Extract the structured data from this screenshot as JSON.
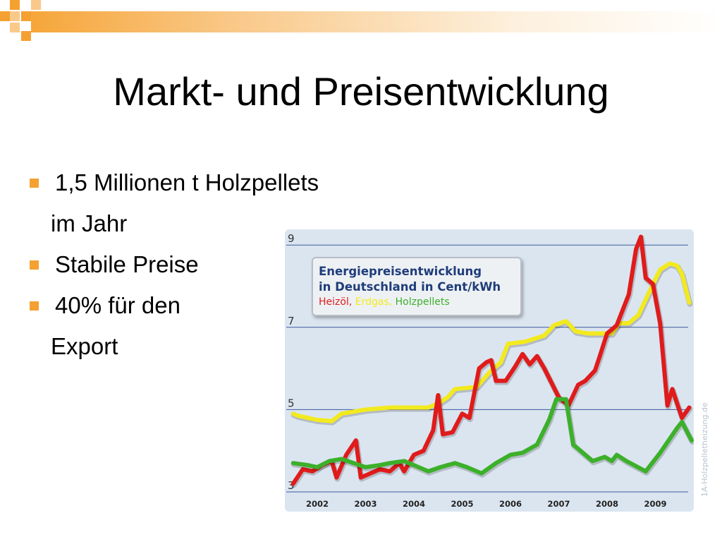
{
  "slide": {
    "title": "Markt- und Preisentwicklung",
    "bullets": [
      {
        "line1": "1,5 Millionen t Holzpellets",
        "line2": "im Jahr"
      },
      {
        "line1": "Stabile Preise"
      },
      {
        "line1": "40% für den",
        "line2": "Export"
      }
    ]
  },
  "colors": {
    "accent": "#f4a132",
    "heizoel": "#e01b1b",
    "erdgas": "#f2ea1e",
    "holzpellets": "#3cb02a"
  },
  "chart_data": {
    "type": "line",
    "title": "Energiepreisentwicklung in Deutschland in Cent/kWh",
    "title_line1": "Energiepreisentwicklung",
    "title_line2": "in Deutschland in Cent/kWh",
    "xlabel": "",
    "ylabel": "",
    "x_ticks": [
      "2002",
      "2003",
      "2004",
      "2005",
      "2006",
      "2007",
      "2008",
      "2009"
    ],
    "xlim": [
      2001.5,
      2009.8
    ],
    "y_ticks": [
      "9",
      "7",
      "5",
      "3"
    ],
    "ylim": [
      3,
      9.3
    ],
    "grid": true,
    "legend_position": "top-left",
    "watermark": "1A-Holzpelletheizung.de",
    "series": [
      {
        "name": "Heizöl",
        "legend_label": "Heizöl,",
        "color_key": "heizoel",
        "points": [
          [
            2001.5,
            3.2
          ],
          [
            2001.7,
            3.55
          ],
          [
            2001.9,
            3.5
          ],
          [
            2002.1,
            3.65
          ],
          [
            2002.3,
            3.75
          ],
          [
            2002.4,
            3.35
          ],
          [
            2002.6,
            3.9
          ],
          [
            2002.8,
            4.25
          ],
          [
            2002.9,
            3.35
          ],
          [
            2003.1,
            3.45
          ],
          [
            2003.3,
            3.55
          ],
          [
            2003.5,
            3.5
          ],
          [
            2003.7,
            3.7
          ],
          [
            2003.8,
            3.5
          ],
          [
            2004.0,
            3.9
          ],
          [
            2004.2,
            4.0
          ],
          [
            2004.4,
            4.5
          ],
          [
            2004.5,
            5.35
          ],
          [
            2004.6,
            4.4
          ],
          [
            2004.8,
            4.45
          ],
          [
            2005.0,
            4.9
          ],
          [
            2005.15,
            4.8
          ],
          [
            2005.35,
            6.0
          ],
          [
            2005.5,
            6.15
          ],
          [
            2005.6,
            6.2
          ],
          [
            2005.7,
            5.7
          ],
          [
            2005.9,
            5.7
          ],
          [
            2006.1,
            6.05
          ],
          [
            2006.25,
            6.35
          ],
          [
            2006.4,
            6.1
          ],
          [
            2006.55,
            6.3
          ],
          [
            2006.7,
            6.0
          ],
          [
            2007.0,
            5.3
          ],
          [
            2007.2,
            5.1
          ],
          [
            2007.4,
            5.6
          ],
          [
            2007.55,
            5.7
          ],
          [
            2007.75,
            5.95
          ],
          [
            2007.85,
            6.3
          ],
          [
            2008.0,
            6.85
          ],
          [
            2008.2,
            7.05
          ],
          [
            2008.45,
            7.8
          ],
          [
            2008.6,
            8.9
          ],
          [
            2008.7,
            9.2
          ],
          [
            2008.8,
            8.2
          ],
          [
            2008.95,
            8.05
          ],
          [
            2009.1,
            7.1
          ],
          [
            2009.25,
            5.1
          ],
          [
            2009.35,
            5.5
          ],
          [
            2009.55,
            4.8
          ],
          [
            2009.7,
            5.05
          ]
        ]
      },
      {
        "name": "Erdgas",
        "legend_label": "Erdgas,",
        "color_key": "erdgas",
        "points": [
          [
            2001.5,
            4.9
          ],
          [
            2001.6,
            4.85
          ],
          [
            2001.8,
            4.8
          ],
          [
            2002.0,
            4.75
          ],
          [
            2002.3,
            4.72
          ],
          [
            2002.5,
            4.9
          ],
          [
            2003.0,
            5.0
          ],
          [
            2003.5,
            5.05
          ],
          [
            2004.0,
            5.05
          ],
          [
            2004.3,
            5.05
          ],
          [
            2004.5,
            5.15
          ],
          [
            2004.7,
            5.3
          ],
          [
            2004.85,
            5.5
          ],
          [
            2005.3,
            5.55
          ],
          [
            2005.6,
            5.95
          ],
          [
            2005.8,
            6.15
          ],
          [
            2005.95,
            6.6
          ],
          [
            2006.3,
            6.65
          ],
          [
            2006.7,
            6.8
          ],
          [
            2006.9,
            7.05
          ],
          [
            2007.15,
            7.15
          ],
          [
            2007.35,
            6.9
          ],
          [
            2007.6,
            6.85
          ],
          [
            2007.9,
            6.85
          ],
          [
            2008.1,
            6.85
          ],
          [
            2008.25,
            7.1
          ],
          [
            2008.45,
            7.1
          ],
          [
            2008.65,
            7.3
          ],
          [
            2008.85,
            7.8
          ],
          [
            2008.95,
            8.05
          ],
          [
            2009.1,
            8.4
          ],
          [
            2009.3,
            8.55
          ],
          [
            2009.45,
            8.5
          ],
          [
            2009.55,
            8.3
          ],
          [
            2009.7,
            7.6
          ]
        ]
      },
      {
        "name": "Holzpellets",
        "legend_label": "Holzpellets",
        "color_key": "holzpellets",
        "points": [
          [
            2001.5,
            3.7
          ],
          [
            2001.8,
            3.65
          ],
          [
            2002.0,
            3.6
          ],
          [
            2002.25,
            3.75
          ],
          [
            2002.5,
            3.8
          ],
          [
            2002.7,
            3.72
          ],
          [
            2003.0,
            3.6
          ],
          [
            2003.3,
            3.65
          ],
          [
            2003.5,
            3.7
          ],
          [
            2003.8,
            3.75
          ],
          [
            2004.0,
            3.65
          ],
          [
            2004.3,
            3.5
          ],
          [
            2004.55,
            3.6
          ],
          [
            2004.85,
            3.7
          ],
          [
            2005.1,
            3.6
          ],
          [
            2005.4,
            3.45
          ],
          [
            2005.7,
            3.7
          ],
          [
            2006.0,
            3.9
          ],
          [
            2006.25,
            3.95
          ],
          [
            2006.55,
            4.15
          ],
          [
            2006.8,
            4.75
          ],
          [
            2006.95,
            5.25
          ],
          [
            2007.15,
            5.25
          ],
          [
            2007.3,
            4.15
          ],
          [
            2007.7,
            3.75
          ],
          [
            2007.95,
            3.85
          ],
          [
            2008.1,
            3.75
          ],
          [
            2008.2,
            3.9
          ],
          [
            2008.4,
            3.75
          ],
          [
            2008.8,
            3.5
          ],
          [
            2009.1,
            3.95
          ],
          [
            2009.45,
            4.55
          ],
          [
            2009.55,
            4.7
          ],
          [
            2009.75,
            4.25
          ]
        ]
      }
    ]
  }
}
